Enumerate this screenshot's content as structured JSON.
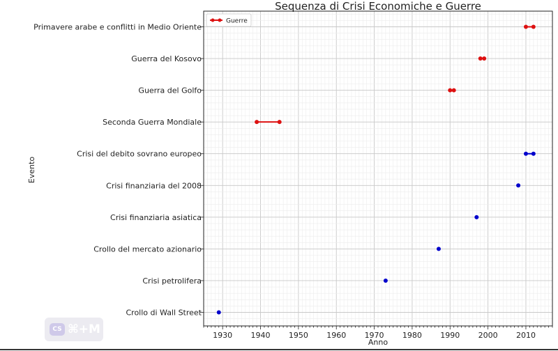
{
  "chart_data": {
    "type": "line",
    "title": "Sequenza di Crisi Economiche e Guerre",
    "xlabel": "Anno",
    "ylabel": "Evento",
    "xlim": [
      1925,
      2017
    ],
    "xticks": [
      "1930",
      "1940",
      "1950",
      "1960",
      "1970",
      "1980",
      "1990",
      "2000",
      "2010"
    ],
    "categories": [
      "Crollo di Wall Street",
      "Crisi petrolifera",
      "Crollo del mercato azionario",
      "Crisi finanziaria asiatica",
      "Crisi finanziaria del 2008",
      "Crisi del debito sovrano europeo",
      "Seconda Guerra Mondiale",
      "Guerra del Golfo",
      "Guerra del Kosovo",
      "Primavere arabe e conflitti in Medio Oriente"
    ],
    "series": [
      {
        "name": "",
        "color": "#0000cc",
        "segments": [
          {
            "event": "Crollo di Wall Street",
            "start": 1929,
            "end": 1929
          },
          {
            "event": "Crisi petrolifera",
            "start": 1973,
            "end": 1973
          },
          {
            "event": "Crollo del mercato azionario",
            "start": 1987,
            "end": 1987
          },
          {
            "event": "Crisi finanziaria asiatica",
            "start": 1997,
            "end": 1997
          },
          {
            "event": "Crisi finanziaria del 2008",
            "start": 2008,
            "end": 2008
          },
          {
            "event": "Crisi del debito sovrano europeo",
            "start": 2010,
            "end": 2012
          }
        ]
      },
      {
        "name": "Guerre",
        "color": "#dd1111",
        "segments": [
          {
            "event": "Seconda Guerra Mondiale",
            "start": 1939,
            "end": 1945
          },
          {
            "event": "Guerra del Golfo",
            "start": 1990,
            "end": 1991
          },
          {
            "event": "Guerra del Kosovo",
            "start": 1998,
            "end": 1999
          },
          {
            "event": "Primavere arabe e conflitti in Medio Oriente",
            "start": 2010,
            "end": 2012
          }
        ]
      }
    ],
    "grid": "major-and-minor",
    "legend": "top-left"
  },
  "watermark": {
    "logo": "CS",
    "text": "⌘+M"
  }
}
